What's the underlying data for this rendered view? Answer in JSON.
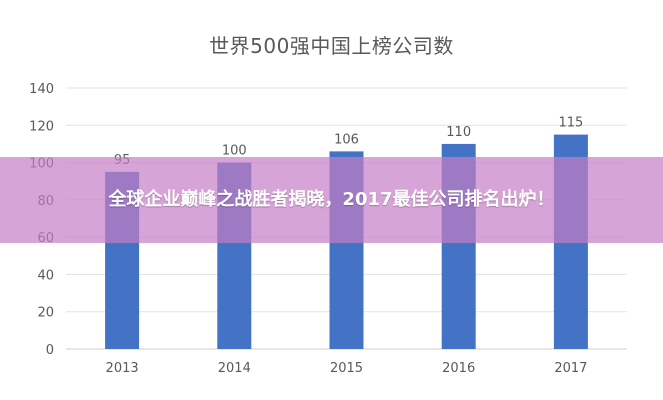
{
  "chart_data": {
    "type": "bar",
    "title": "世界500强中国上榜公司数",
    "categories": [
      "2013",
      "2014",
      "2015",
      "2016",
      "2017"
    ],
    "values": [
      95,
      100,
      106,
      110,
      115
    ],
    "ylim": [
      0,
      140
    ],
    "yticks": [
      0,
      20,
      40,
      60,
      80,
      100,
      120,
      140
    ],
    "grid": true,
    "legend": "none",
    "bar_color": "#4472C4"
  },
  "banner": {
    "text": "全球企业巅峰之战胜者揭晓，2017最佳公司排名出炉！",
    "color": "#C47EC4"
  }
}
